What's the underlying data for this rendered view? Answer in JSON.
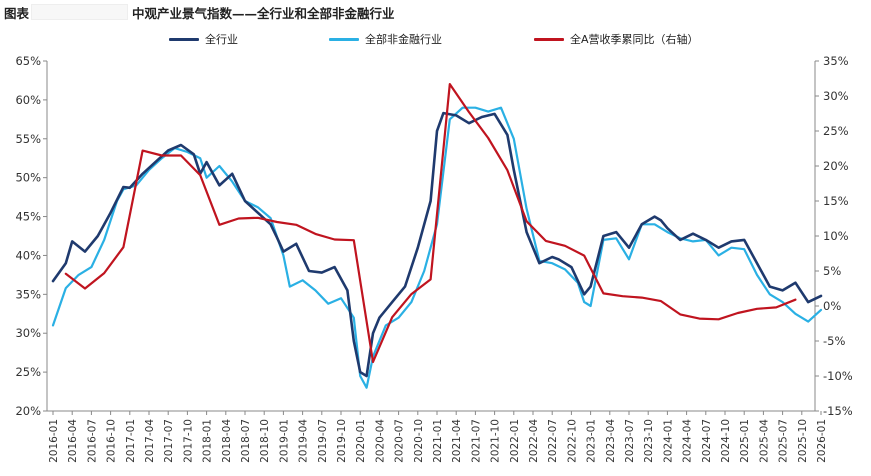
{
  "header": {
    "prefix": "图表",
    "title": "中观产业景气指数——全行业和全部非金融行业"
  },
  "chart_data": {
    "type": "line",
    "xlabel": "",
    "ylabel": "",
    "left_axis": {
      "ylim": [
        0.2,
        0.65
      ],
      "ticks": [
        "20%",
        "25%",
        "30%",
        "35%",
        "40%",
        "45%",
        "50%",
        "55%",
        "60%",
        "65%"
      ]
    },
    "right_axis": {
      "ylim": [
        -15,
        35
      ],
      "ticks": [
        "-15%",
        "-10%",
        "-5%",
        "0%",
        "5%",
        "10%",
        "15%",
        "20%",
        "25%",
        "30%",
        "35%"
      ]
    },
    "grid": false,
    "legend_position": "top",
    "x_ticks": [
      "2016-01",
      "2016-04",
      "2016-07",
      "2016-10",
      "2017-01",
      "2017-04",
      "2017-07",
      "2017-10",
      "2018-01",
      "2018-04",
      "2018-07",
      "2018-10",
      "2019-01",
      "2019-04",
      "2019-07",
      "2019-10",
      "2020-01",
      "2020-04",
      "2020-07",
      "2020-10",
      "2021-01",
      "2021-04",
      "2021-07",
      "2021-10",
      "2022-01",
      "2022-04",
      "2022-07",
      "2022-10",
      "2023-01",
      "2023-04",
      "2023-07",
      "2023-10",
      "2024-01",
      "2024-04",
      "2024-07",
      "2024-10",
      "2025-01",
      "2025-04",
      "2025-07",
      "2025-10",
      "2026-01"
    ],
    "series": [
      {
        "name": "全行业",
        "color": "#1f3a6e",
        "axis": "left",
        "x": [
          "2016-01",
          "2016-03",
          "2016-04",
          "2016-06",
          "2016-08",
          "2016-10",
          "2016-12",
          "2017-01",
          "2017-03",
          "2017-05",
          "2017-07",
          "2017-09",
          "2017-11",
          "2017-12",
          "2018-01",
          "2018-03",
          "2018-05",
          "2018-07",
          "2018-09",
          "2018-11",
          "2018-12",
          "2019-01",
          "2019-03",
          "2019-05",
          "2019-07",
          "2019-09",
          "2019-11",
          "2019-12",
          "2020-01",
          "2020-02",
          "2020-03",
          "2020-04",
          "2020-06",
          "2020-08",
          "2020-10",
          "2020-12",
          "2021-01",
          "2021-02",
          "2021-04",
          "2021-06",
          "2021-08",
          "2021-10",
          "2021-12",
          "2022-01",
          "2022-03",
          "2022-05",
          "2022-07",
          "2022-08",
          "2022-10",
          "2022-12",
          "2023-01",
          "2023-03",
          "2023-05",
          "2023-07",
          "2023-09",
          "2023-11",
          "2023-12",
          "2024-01",
          "2024-03",
          "2024-05",
          "2024-07",
          "2024-09",
          "2024-11",
          "2025-01",
          "2025-03",
          "2025-05",
          "2025-07",
          "2025-09",
          "2025-11",
          "2026-01"
        ],
        "values": [
          0.367,
          0.39,
          0.418,
          0.405,
          0.425,
          0.455,
          0.488,
          0.487,
          0.505,
          0.52,
          0.535,
          0.542,
          0.53,
          0.505,
          0.52,
          0.49,
          0.505,
          0.47,
          0.455,
          0.44,
          0.423,
          0.405,
          0.415,
          0.38,
          0.378,
          0.385,
          0.355,
          0.29,
          0.25,
          0.245,
          0.3,
          0.32,
          0.34,
          0.36,
          0.41,
          0.47,
          0.56,
          0.583,
          0.58,
          0.57,
          0.578,
          0.582,
          0.555,
          0.51,
          0.43,
          0.39,
          0.398,
          0.395,
          0.385,
          0.35,
          0.36,
          0.425,
          0.43,
          0.41,
          0.44,
          0.45,
          0.445,
          0.435,
          0.42,
          0.428,
          0.42,
          0.41,
          0.418,
          0.42,
          0.39,
          0.36,
          0.355,
          0.365,
          0.34,
          0.348
        ]
      },
      {
        "name": "全部非金融行业",
        "color": "#2ab0e4",
        "axis": "left",
        "x": [
          "2016-01",
          "2016-03",
          "2016-05",
          "2016-07",
          "2016-09",
          "2016-11",
          "2016-12",
          "2017-02",
          "2017-04",
          "2017-06",
          "2017-08",
          "2017-10",
          "2017-12",
          "2018-01",
          "2018-03",
          "2018-05",
          "2018-07",
          "2018-09",
          "2018-11",
          "2019-01",
          "2019-02",
          "2019-04",
          "2019-06",
          "2019-08",
          "2019-10",
          "2019-12",
          "2020-01",
          "2020-02",
          "2020-03",
          "2020-05",
          "2020-07",
          "2020-09",
          "2020-11",
          "2021-01",
          "2021-03",
          "2021-05",
          "2021-07",
          "2021-09",
          "2021-11",
          "2022-01",
          "2022-03",
          "2022-05",
          "2022-07",
          "2022-09",
          "2022-11",
          "2022-12",
          "2023-01",
          "2023-03",
          "2023-05",
          "2023-07",
          "2023-09",
          "2023-11",
          "2024-01",
          "2024-03",
          "2024-05",
          "2024-07",
          "2024-09",
          "2024-11",
          "2025-01",
          "2025-03",
          "2025-05",
          "2025-07",
          "2025-09",
          "2025-11",
          "2026-01"
        ],
        "values": [
          0.31,
          0.358,
          0.375,
          0.385,
          0.42,
          0.47,
          0.485,
          0.49,
          0.51,
          0.525,
          0.538,
          0.533,
          0.525,
          0.5,
          0.515,
          0.495,
          0.47,
          0.462,
          0.448,
          0.4,
          0.36,
          0.368,
          0.355,
          0.338,
          0.345,
          0.32,
          0.245,
          0.23,
          0.27,
          0.31,
          0.32,
          0.34,
          0.38,
          0.44,
          0.575,
          0.59,
          0.59,
          0.585,
          0.59,
          0.55,
          0.46,
          0.393,
          0.39,
          0.382,
          0.365,
          0.34,
          0.335,
          0.42,
          0.422,
          0.395,
          0.44,
          0.44,
          0.43,
          0.422,
          0.418,
          0.42,
          0.4,
          0.41,
          0.408,
          0.375,
          0.35,
          0.34,
          0.325,
          0.315,
          0.33
        ]
      },
      {
        "name": "全A营收季累同比（右轴）",
        "color": "#c0141f",
        "axis": "right",
        "x": [
          "2016-03",
          "2016-06",
          "2016-09",
          "2016-12",
          "2017-03",
          "2017-06",
          "2017-09",
          "2017-12",
          "2018-03",
          "2018-06",
          "2018-09",
          "2018-12",
          "2019-03",
          "2019-06",
          "2019-09",
          "2019-12",
          "2020-03",
          "2020-06",
          "2020-09",
          "2020-12",
          "2021-03",
          "2021-06",
          "2021-09",
          "2021-12",
          "2022-03",
          "2022-06",
          "2022-09",
          "2022-12",
          "2023-03",
          "2023-06",
          "2023-09",
          "2023-12",
          "2024-03",
          "2024-06",
          "2024-09",
          "2024-12",
          "2025-03",
          "2025-06",
          "2025-09"
        ],
        "values": [
          4.6,
          2.5,
          4.7,
          8.4,
          22.2,
          21.5,
          21.5,
          18.7,
          11.6,
          12.5,
          12.6,
          12.0,
          11.6,
          10.3,
          9.5,
          9.4,
          -8.0,
          -1.6,
          1.7,
          3.8,
          31.7,
          27.7,
          24.0,
          19.4,
          12.1,
          9.3,
          8.6,
          7.2,
          1.8,
          1.4,
          1.2,
          0.7,
          -1.2,
          -1.8,
          -1.9,
          -1.0,
          -0.4,
          -0.2,
          0.9
        ]
      }
    ]
  }
}
